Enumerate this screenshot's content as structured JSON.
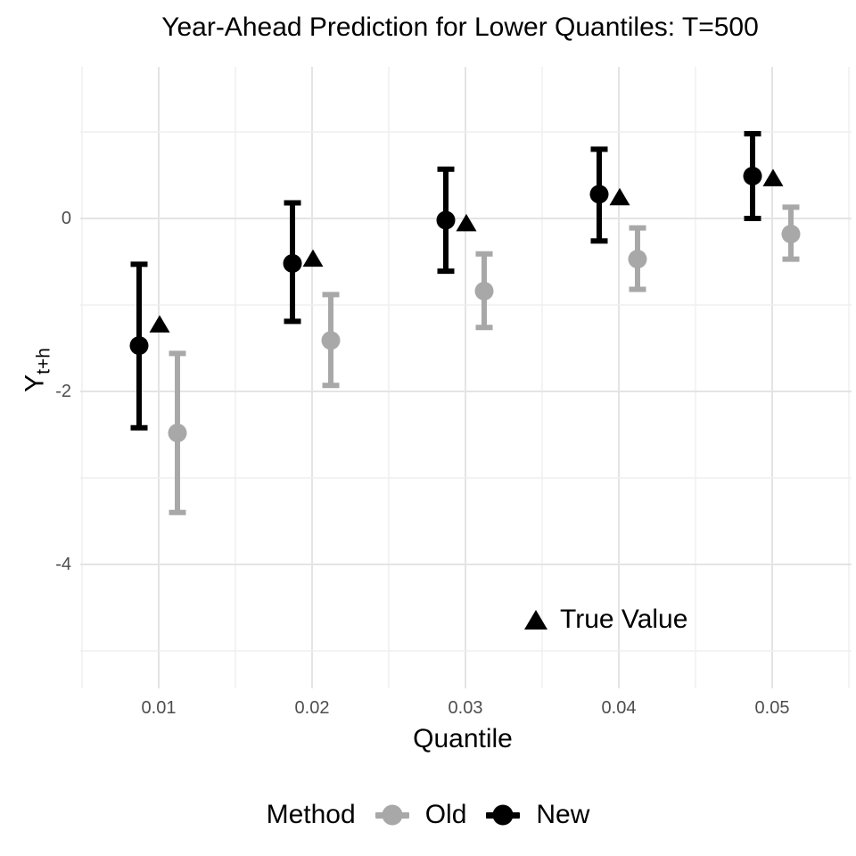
{
  "title": "Year-Ahead Prediction for Lower Quantiles: T=500",
  "axes": {
    "x_label": "Quantile",
    "y_label_main": "Y",
    "y_label_sub": "t+h",
    "x_tick_labels": [
      "0.01",
      "0.02",
      "0.03",
      "0.04",
      "0.05"
    ],
    "y_tick_labels": [
      "0",
      "-2",
      "-4"
    ]
  },
  "annotation": {
    "icon": "triangle-icon",
    "label": "True Value"
  },
  "legend": {
    "title": "Method",
    "items": [
      {
        "label": "Old",
        "color": "#a8a8a8"
      },
      {
        "label": "New",
        "color": "#000000"
      }
    ]
  },
  "colors": {
    "background": "#ffffff",
    "grid_major": "#e4e4e4",
    "grid_minor": "#efefef",
    "tick_text": "#4d4d4d",
    "old": "#a8a8a8",
    "new": "#000000",
    "true_value": "#000000"
  },
  "chart_data": {
    "type": "pointrange",
    "title": "Year-Ahead Prediction for Lower Quantiles: T=500",
    "xlabel": "Quantile",
    "ylabel": "Y_t+h",
    "x": [
      0.01,
      0.02,
      0.03,
      0.04,
      0.05
    ],
    "series": [
      {
        "name": "Old",
        "color": "#a8a8a8",
        "points": [
          {
            "x": 0.01,
            "y": -2.48,
            "lo": -3.4,
            "hi": -1.56
          },
          {
            "x": 0.02,
            "y": -1.41,
            "lo": -1.93,
            "hi": -0.88
          },
          {
            "x": 0.03,
            "y": -0.84,
            "lo": -1.26,
            "hi": -0.41
          },
          {
            "x": 0.04,
            "y": -0.47,
            "lo": -0.82,
            "hi": -0.11
          },
          {
            "x": 0.05,
            "y": -0.18,
            "lo": -0.47,
            "hi": 0.13
          }
        ]
      },
      {
        "name": "New",
        "color": "#000000",
        "points": [
          {
            "x": 0.01,
            "y": -1.47,
            "lo": -2.42,
            "hi": -0.53
          },
          {
            "x": 0.02,
            "y": -0.52,
            "lo": -1.19,
            "hi": 0.18
          },
          {
            "x": 0.03,
            "y": -0.02,
            "lo": -0.61,
            "hi": 0.57
          },
          {
            "x": 0.04,
            "y": 0.28,
            "lo": -0.26,
            "hi": 0.8
          },
          {
            "x": 0.05,
            "y": 0.49,
            "lo": 0.0,
            "hi": 0.98
          }
        ]
      }
    ],
    "true_values": [
      {
        "x": 0.01,
        "y": -1.22
      },
      {
        "x": 0.02,
        "y": -0.46
      },
      {
        "x": 0.03,
        "y": -0.05
      },
      {
        "x": 0.04,
        "y": 0.25
      },
      {
        "x": 0.05,
        "y": 0.47
      }
    ],
    "yticks_major": [
      0,
      -2,
      -4
    ],
    "yticks_minor": [
      1,
      -1,
      -3,
      -5
    ],
    "xticks_major": [
      0.01,
      0.02,
      0.03,
      0.04,
      0.05
    ],
    "xticks_minor": [
      0.005,
      0.015,
      0.025,
      0.035,
      0.045,
      0.055
    ],
    "ylim": [
      -5.4,
      1.75
    ],
    "xlim": [
      0.005,
      0.055
    ],
    "grid": true,
    "legend_position": "bottom"
  }
}
